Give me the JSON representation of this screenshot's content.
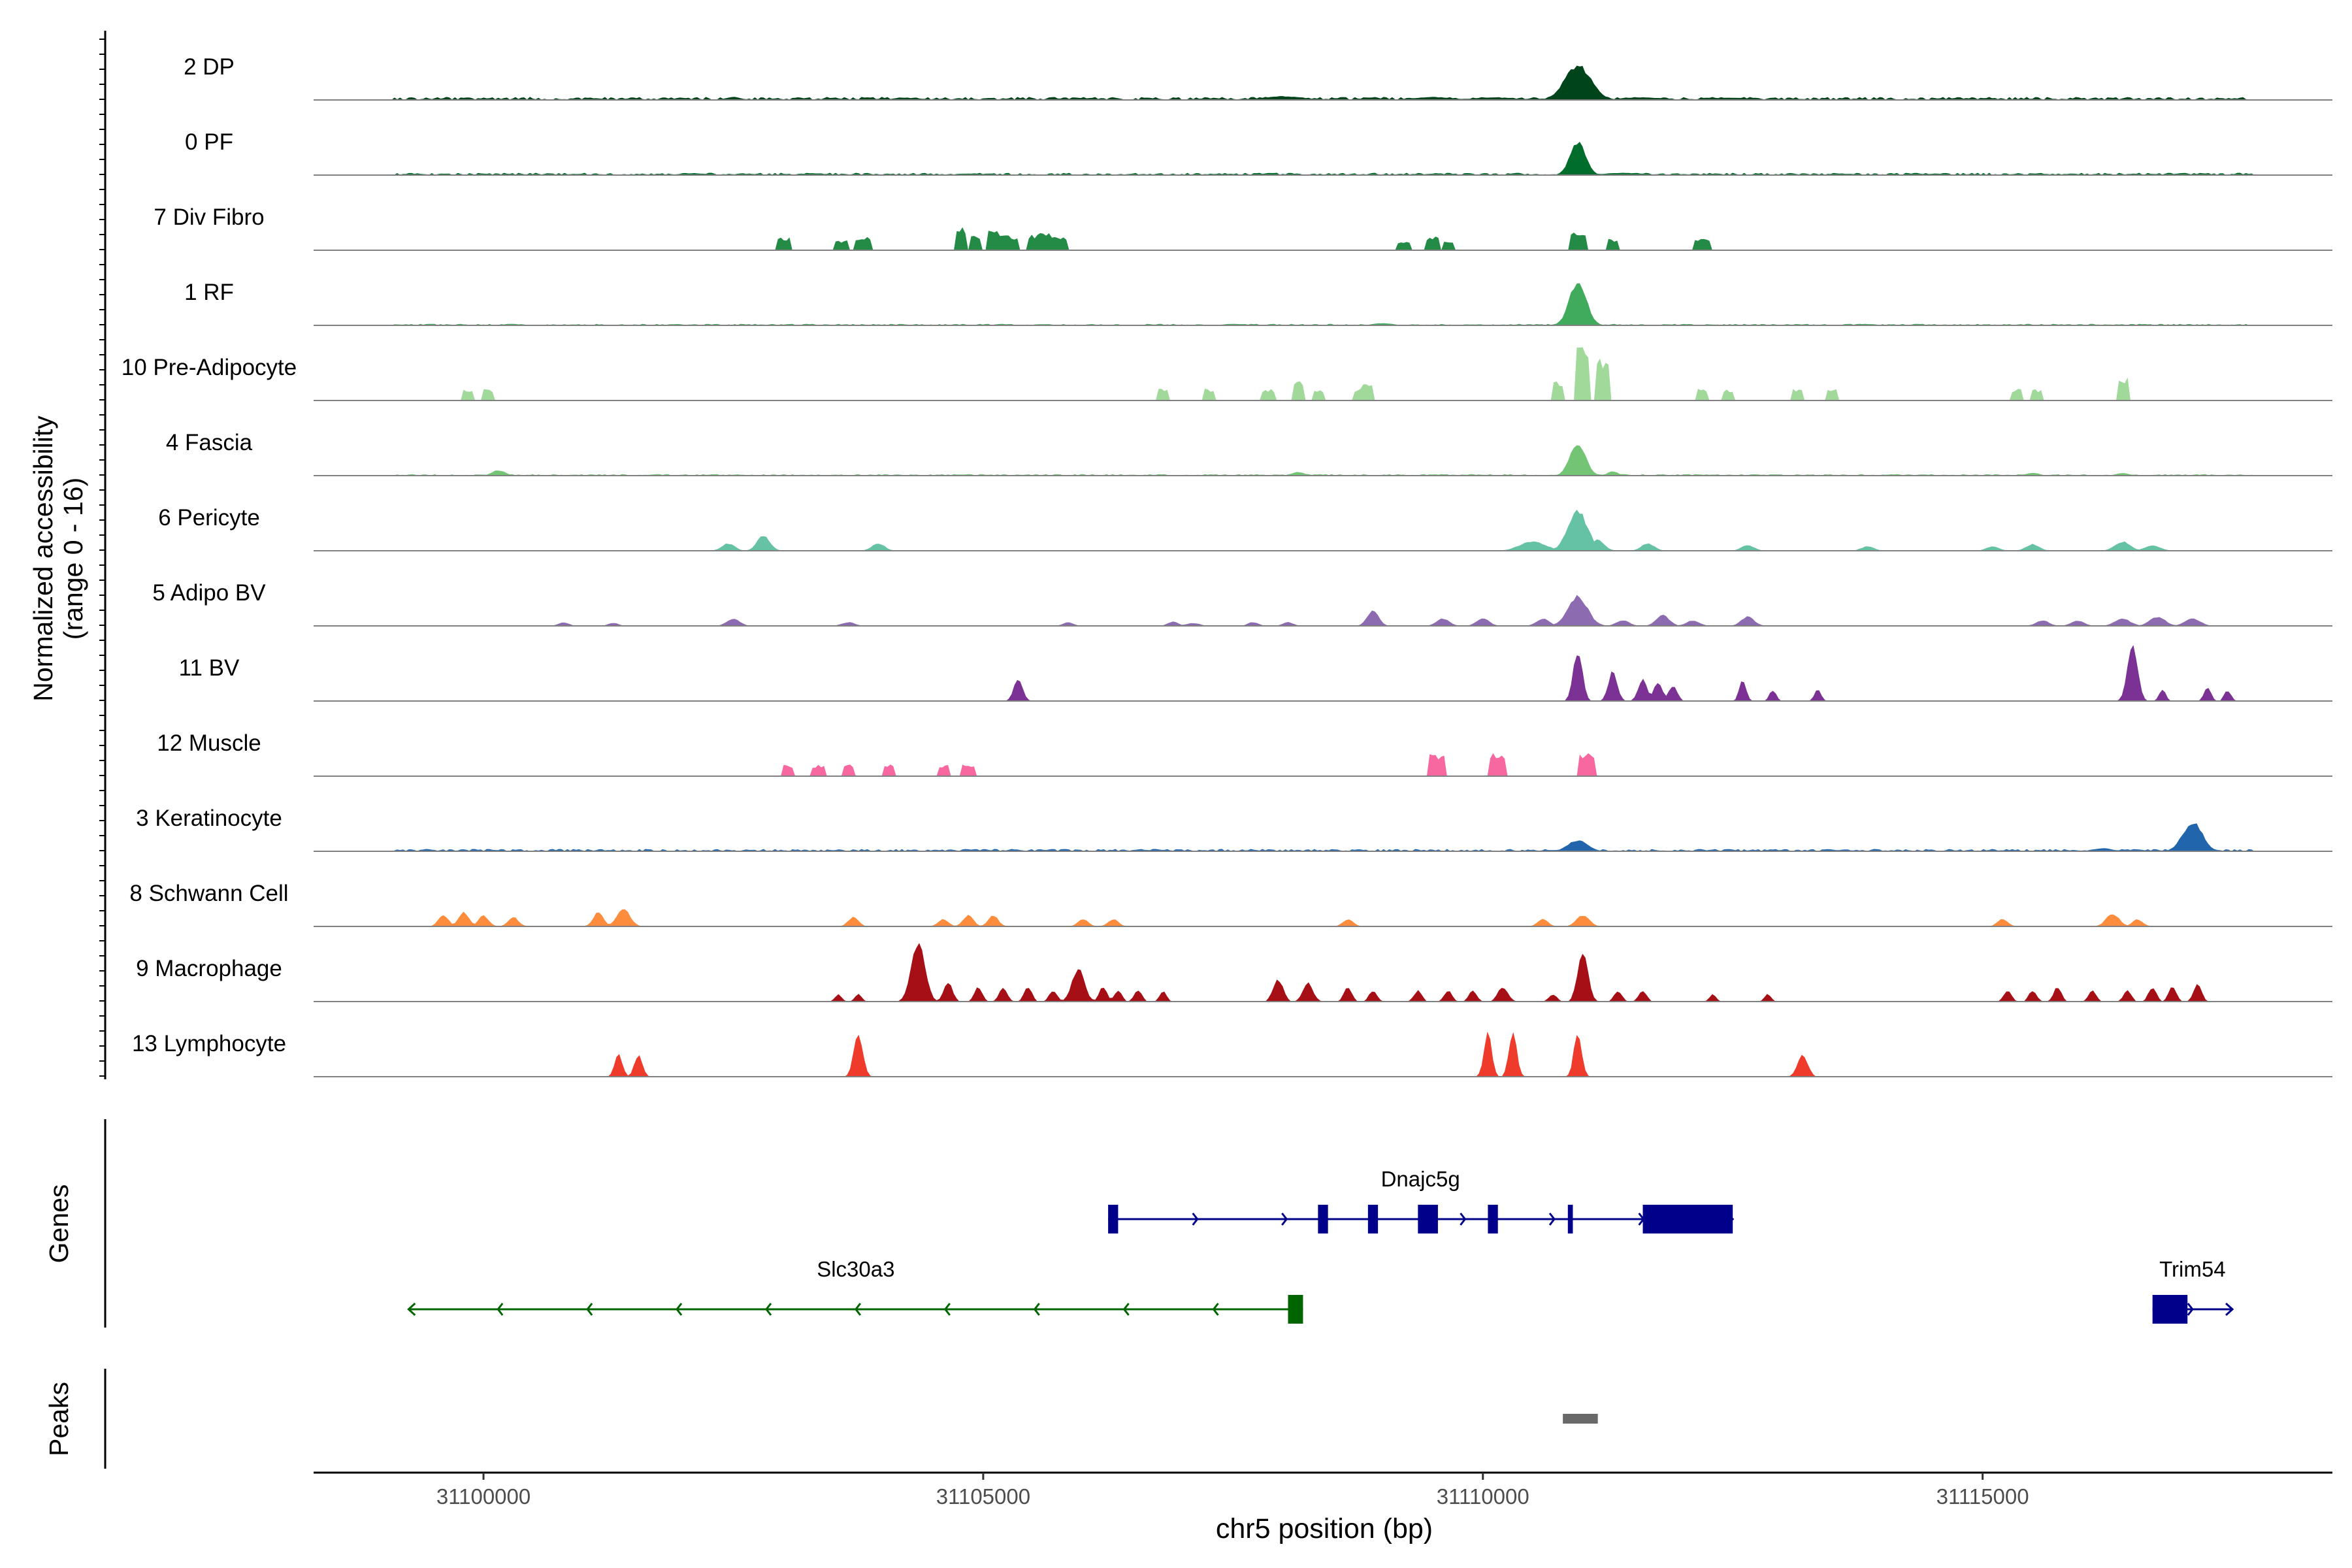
{
  "chart_data": {
    "type": "area",
    "title": "",
    "chromosome": "chr5",
    "xlabel": "chr5 position (bp)",
    "ylabel": "Normalized accessibility",
    "ylabel_range": "(range 0 - 16)",
    "xlim": [
      31098300,
      31118500
    ],
    "ylim": [
      0,
      16
    ],
    "xticks": [
      31100000,
      31105000,
      31110000,
      31115000
    ],
    "xtick_labels": [
      "31100000",
      "31105000",
      "31110000",
      "31115000"
    ],
    "panel_labels": {
      "genes": "Genes",
      "peaks": "Peaks"
    },
    "tracks": [
      {
        "name": "2 DP",
        "color": "#00441b",
        "mode": "noise",
        "base": 0.6,
        "peaks": [
          [
            31101500,
            120,
            0.5
          ],
          [
            31102500,
            120,
            0.8
          ],
          [
            31104200,
            150,
            0.6
          ],
          [
            31106000,
            200,
            0.5
          ],
          [
            31108000,
            300,
            1.0
          ],
          [
            31109500,
            300,
            0.8
          ],
          [
            31110100,
            300,
            0.7
          ],
          [
            31110950,
            200,
            9.5
          ],
          [
            31111600,
            300,
            0.7
          ],
          [
            31112500,
            300,
            0.6
          ]
        ]
      },
      {
        "name": "0 PF",
        "color": "#006d2c",
        "mode": "noise",
        "base": 0.45,
        "peaks": [
          [
            31102100,
            200,
            0.5
          ],
          [
            31103300,
            150,
            0.5
          ],
          [
            31110950,
            120,
            9.0
          ],
          [
            31111400,
            300,
            0.6
          ]
        ]
      },
      {
        "name": "7 Div Fibro",
        "color": "#238b45",
        "mode": "blocks",
        "peaks": [
          [
            31103000,
            70,
            3.5
          ],
          [
            31103580,
            80,
            2.5
          ],
          [
            31103800,
            80,
            3.5
          ],
          [
            31104780,
            60,
            6
          ],
          [
            31104920,
            60,
            4
          ],
          [
            31105100,
            60,
            5
          ],
          [
            31105200,
            60,
            4
          ],
          [
            31105300,
            60,
            3.5
          ],
          [
            31105500,
            60,
            4
          ],
          [
            31105600,
            60,
            5
          ],
          [
            31105700,
            60,
            4
          ],
          [
            31105800,
            60,
            3.5
          ],
          [
            31109200,
            70,
            2.5
          ],
          [
            31109500,
            70,
            3.5
          ],
          [
            31109650,
            60,
            2.5
          ],
          [
            31110950,
            80,
            5
          ],
          [
            31111300,
            70,
            3
          ],
          [
            31112200,
            80,
            3
          ]
        ]
      },
      {
        "name": "1 RF",
        "color": "#41ab5d",
        "mode": "noise",
        "base": 0.3,
        "peaks": [
          [
            31110950,
            130,
            12
          ],
          [
            31109000,
            150,
            0.6
          ],
          [
            31107500,
            150,
            0.4
          ]
        ]
      },
      {
        "name": "10 Pre-Adipocyte",
        "color": "#a1d99b",
        "mode": "blocks",
        "peaks": [
          [
            31099850,
            60,
            3
          ],
          [
            31100050,
            60,
            3
          ],
          [
            31106800,
            60,
            3
          ],
          [
            31107250,
            60,
            3
          ],
          [
            31107850,
            60,
            3
          ],
          [
            31108150,
            60,
            5
          ],
          [
            31108350,
            60,
            3
          ],
          [
            31108750,
            60,
            3
          ],
          [
            31108850,
            60,
            5
          ],
          [
            31110750,
            60,
            5
          ],
          [
            31111000,
            70,
            14
          ],
          [
            31111200,
            60,
            11
          ],
          [
            31112200,
            60,
            3
          ],
          [
            31112450,
            60,
            3
          ],
          [
            31113150,
            60,
            3
          ],
          [
            31113500,
            60,
            3
          ],
          [
            31115350,
            60,
            3
          ],
          [
            31115550,
            60,
            3
          ],
          [
            31116400,
            60,
            6
          ]
        ]
      },
      {
        "name": "4 Fascia",
        "color": "#74c476",
        "mode": "noise",
        "base": 0.3,
        "peaks": [
          [
            31100150,
            100,
            1.5
          ],
          [
            31108150,
            100,
            1.0
          ],
          [
            31110950,
            120,
            9
          ],
          [
            31111300,
            80,
            1.2
          ],
          [
            31115500,
            100,
            0.8
          ],
          [
            31116400,
            100,
            0.7
          ]
        ]
      },
      {
        "name": "6 Pericyte",
        "color": "#66c2a4",
        "mode": "noise",
        "base": 0.1,
        "peaks": [
          [
            31102450,
            100,
            2
          ],
          [
            31102800,
            100,
            4
          ],
          [
            31103950,
            100,
            2
          ],
          [
            31110500,
            200,
            2.5
          ],
          [
            31110950,
            150,
            11
          ],
          [
            31111150,
            100,
            3
          ],
          [
            31111650,
            100,
            2
          ],
          [
            31112650,
            100,
            1.5
          ],
          [
            31113850,
            100,
            1.2
          ],
          [
            31115100,
            100,
            1.2
          ],
          [
            31115500,
            100,
            1.8
          ],
          [
            31116400,
            120,
            2.5
          ],
          [
            31116700,
            120,
            1.5
          ]
        ]
      },
      {
        "name": "5 Adipo BV",
        "color": "#8c6bb1",
        "mode": "noise",
        "base": 0,
        "peaks": [
          [
            31100800,
            80,
            1.0
          ],
          [
            31101300,
            80,
            0.8
          ],
          [
            31102500,
            100,
            2.0
          ],
          [
            31103650,
            100,
            1.0
          ],
          [
            31105850,
            80,
            1.0
          ],
          [
            31106900,
            80,
            1.2
          ],
          [
            31107100,
            100,
            0.8
          ],
          [
            31107700,
            80,
            1.0
          ],
          [
            31108050,
            80,
            1.0
          ],
          [
            31108900,
            90,
            4.0
          ],
          [
            31109600,
            100,
            2.0
          ],
          [
            31110000,
            100,
            2.0
          ],
          [
            31110600,
            100,
            2.0
          ],
          [
            31110950,
            150,
            8.0
          ],
          [
            31111400,
            100,
            1.5
          ],
          [
            31111800,
            100,
            3.0
          ],
          [
            31112100,
            100,
            1.5
          ],
          [
            31112650,
            100,
            2.5
          ],
          [
            31115600,
            100,
            1.5
          ],
          [
            31115950,
            100,
            1.5
          ],
          [
            31116400,
            120,
            2.0
          ],
          [
            31116750,
            120,
            2.5
          ],
          [
            31117100,
            120,
            2.0
          ]
        ]
      },
      {
        "name": "11 BV",
        "color": "#7b3294",
        "mode": "spikes",
        "peaks": [
          [
            31105350,
            80,
            6
          ],
          [
            31110950,
            80,
            14
          ],
          [
            31111300,
            80,
            8
          ],
          [
            31111600,
            80,
            6
          ],
          [
            31111750,
            80,
            5
          ],
          [
            31111900,
            80,
            4
          ],
          [
            31112600,
            60,
            6
          ],
          [
            31112900,
            60,
            3
          ],
          [
            31113350,
            60,
            3
          ],
          [
            31116500,
            90,
            15
          ],
          [
            31116800,
            60,
            3
          ],
          [
            31117250,
            60,
            4
          ],
          [
            31117450,
            60,
            3
          ]
        ]
      },
      {
        "name": "12 Muscle",
        "color": "#f768a1",
        "mode": "blocks",
        "peaks": [
          [
            31103050,
            60,
            3
          ],
          [
            31103350,
            60,
            3
          ],
          [
            31103650,
            60,
            3
          ],
          [
            31104050,
            60,
            3
          ],
          [
            31104600,
            60,
            3
          ],
          [
            31104850,
            60,
            3
          ],
          [
            31109550,
            90,
            6
          ],
          [
            31110150,
            90,
            6
          ],
          [
            31111050,
            90,
            6
          ]
        ]
      },
      {
        "name": "3 Keratinocyte",
        "color": "#2166ac",
        "mode": "noise",
        "base": 0.45,
        "peaks": [
          [
            31110950,
            150,
            3.0
          ],
          [
            31117100,
            150,
            8.0
          ],
          [
            31116200,
            150,
            0.8
          ]
        ]
      },
      {
        "name": "8 Schwann Cell",
        "color": "#fd8d3c",
        "mode": "noise",
        "base": 0,
        "peaks": [
          [
            31099600,
            80,
            3.0
          ],
          [
            31099800,
            80,
            4.0
          ],
          [
            31100000,
            80,
            3.0
          ],
          [
            31100300,
            80,
            2.5
          ],
          [
            31101150,
            80,
            4.0
          ],
          [
            31101400,
            100,
            5.0
          ],
          [
            31103700,
            80,
            2.5
          ],
          [
            31104600,
            80,
            2.0
          ],
          [
            31104850,
            80,
            3.0
          ],
          [
            31105100,
            80,
            3.0
          ],
          [
            31106000,
            80,
            2.0
          ],
          [
            31106300,
            80,
            2.0
          ],
          [
            31108650,
            80,
            2.0
          ],
          [
            31110600,
            80,
            2.0
          ],
          [
            31111000,
            100,
            3.0
          ],
          [
            31115200,
            80,
            2.0
          ],
          [
            31116300,
            100,
            3.5
          ],
          [
            31116550,
            80,
            2.0
          ]
        ]
      },
      {
        "name": "9 Macrophage",
        "color": "#a50f15",
        "mode": "spikes",
        "peaks": [
          [
            31103550,
            60,
            2
          ],
          [
            31103750,
            60,
            2
          ],
          [
            31104350,
            120,
            16
          ],
          [
            31104650,
            80,
            5
          ],
          [
            31104950,
            70,
            4
          ],
          [
            31105200,
            70,
            4
          ],
          [
            31105450,
            70,
            4
          ],
          [
            31105700,
            70,
            3
          ],
          [
            31105950,
            110,
            9
          ],
          [
            31106200,
            70,
            4
          ],
          [
            31106350,
            70,
            3
          ],
          [
            31106550,
            70,
            3
          ],
          [
            31106800,
            60,
            3
          ],
          [
            31107950,
            90,
            6
          ],
          [
            31108250,
            90,
            5
          ],
          [
            31108650,
            70,
            4
          ],
          [
            31108900,
            70,
            3
          ],
          [
            31109350,
            70,
            3
          ],
          [
            31109650,
            70,
            3
          ],
          [
            31109900,
            70,
            3
          ],
          [
            31110200,
            90,
            4
          ],
          [
            31110700,
            70,
            2
          ],
          [
            31111000,
            90,
            14
          ],
          [
            31111350,
            70,
            3
          ],
          [
            31111600,
            70,
            3
          ],
          [
            31112300,
            60,
            2
          ],
          [
            31112850,
            60,
            2
          ],
          [
            31115250,
            70,
            3
          ],
          [
            31115500,
            70,
            3
          ],
          [
            31115750,
            70,
            4
          ],
          [
            31116100,
            70,
            3
          ],
          [
            31116450,
            70,
            3
          ],
          [
            31116700,
            70,
            4
          ],
          [
            31116900,
            70,
            4
          ],
          [
            31117150,
            70,
            5
          ]
        ]
      },
      {
        "name": "13 Lymphocyte",
        "color": "#ef3b2c",
        "mode": "spikes",
        "peaks": [
          [
            31101350,
            70,
            6
          ],
          [
            31101550,
            70,
            6
          ],
          [
            31103750,
            80,
            12
          ],
          [
            31110050,
            70,
            12
          ],
          [
            31110300,
            70,
            12
          ],
          [
            31110950,
            70,
            12
          ],
          [
            31113200,
            90,
            6
          ]
        ]
      }
    ],
    "genes": [
      {
        "name": "Dnajc5g",
        "strand": "+",
        "row": 1,
        "color": "#00008b",
        "start": 31106250,
        "end": 31112500,
        "exons": [
          [
            31106250,
            31106350
          ],
          [
            31108350,
            31108450
          ],
          [
            31108850,
            31108950
          ],
          [
            31109350,
            31109550
          ],
          [
            31110050,
            31110150
          ],
          [
            31110850,
            31110900
          ],
          [
            31111600,
            31112500
          ]
        ]
      },
      {
        "name": "Slc30a3",
        "strand": "-",
        "row": 2,
        "color": "#006400",
        "start": 31099250,
        "end": 31108200,
        "exons": [
          [
            31108050,
            31108200
          ]
        ]
      },
      {
        "name": "Trim54",
        "strand": "+",
        "row": 2,
        "color": "#00008b",
        "start": 31116700,
        "end": 31117500,
        "exons": [
          [
            31116700,
            31117050
          ]
        ]
      }
    ],
    "peak_regions": [
      {
        "start": 31110800,
        "end": 31111150,
        "color": "#696969"
      }
    ]
  }
}
